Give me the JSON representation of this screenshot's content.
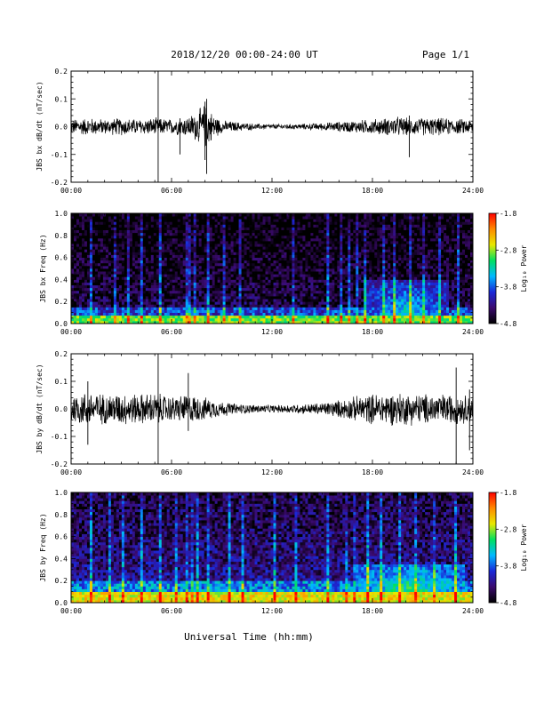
{
  "header": {
    "date_range": "2018/12/20  00:00-24:00 UT",
    "page": "Page 1/1"
  },
  "xaxis": {
    "label": "Universal Time (hh:mm)",
    "tick_labels": [
      "00:00",
      "06:00",
      "12:00",
      "18:00",
      "24:00"
    ],
    "range_hours": [
      0,
      24
    ]
  },
  "colorbar": {
    "label": "Log₁₀ Power",
    "tick_labels": [
      "-1.8",
      "-2.8",
      "-3.8",
      "-4.8"
    ],
    "range": [
      -4.8,
      -1.8
    ],
    "colors": [
      "#000000",
      "#3b0a6e",
      "#1a28d8",
      "#00b8ff",
      "#00e060",
      "#e8e800",
      "#ff8a00",
      "#ff0000"
    ]
  },
  "chart_data": [
    {
      "type": "line",
      "id": "bx-waveform",
      "ylabel": "JBS bx dB/dt (nT/sec)",
      "ylim": [
        -0.2,
        0.2
      ],
      "yticks": [
        "-0.2",
        "-0.1",
        "0.0",
        "0.1",
        "0.2"
      ],
      "series": [
        {
          "x_hours": [
            0,
            1,
            2,
            3,
            4,
            5,
            6,
            7,
            7.5,
            8,
            8.5,
            9,
            10,
            11,
            12,
            13,
            14,
            15,
            16,
            17,
            18,
            19,
            19.5,
            20,
            21,
            22,
            23,
            24
          ],
          "amplitude": [
            0.03,
            0.035,
            0.03,
            0.035,
            0.03,
            0.035,
            0.03,
            0.04,
            0.06,
            0.09,
            0.05,
            0.025,
            0.018,
            0.012,
            0.01,
            0.01,
            0.012,
            0.015,
            0.02,
            0.025,
            0.03,
            0.035,
            0.04,
            0.035,
            0.035,
            0.035,
            0.03,
            0.03
          ]
        }
      ],
      "spikes": [
        {
          "x_hours": 5.2,
          "y": [
            -0.2,
            0.2
          ]
        },
        {
          "x_hours": 6.5,
          "y": [
            -0.1,
            0.03
          ]
        },
        {
          "x_hours": 8.1,
          "y": [
            -0.17,
            0.1
          ]
        },
        {
          "x_hours": 8.0,
          "y": [
            -0.12,
            0.09
          ]
        },
        {
          "x_hours": 20.2,
          "y": [
            -0.11,
            0.04
          ]
        }
      ]
    },
    {
      "type": "heatmap",
      "id": "bx-spectrogram",
      "ylabel": "JBS bx Freq (Hz)",
      "ylim": [
        0.0,
        1.0
      ],
      "yticks": [
        "0.0",
        "0.2",
        "0.4",
        "0.6",
        "0.8",
        "1.0"
      ],
      "zlim": [
        -4.8,
        -1.8
      ],
      "features": {
        "background_log_power": -4.5,
        "low_freq_band": {
          "freq_max_hz": 0.07,
          "log_power": -2.9
        },
        "enhancement": {
          "x_hours": [
            17.5,
            22.5
          ],
          "freq_max_hz": 0.4,
          "peak_log_power": -3.0
        },
        "vertical_streaks_hours": [
          1.2,
          2.5,
          3.3,
          4.2,
          5.3,
          6.8,
          7.1,
          7.4,
          8.1,
          9.2,
          10.1,
          13.3,
          15.3,
          16.1,
          16.7,
          17.1,
          17.6,
          18.7,
          19.4,
          20.3,
          21.1,
          22.0,
          23.2
        ]
      }
    },
    {
      "type": "line",
      "id": "by-waveform",
      "ylabel": "JBS by dB/dt (nT/sec)",
      "ylim": [
        -0.2,
        0.2
      ],
      "yticks": [
        "-0.2",
        "-0.1",
        "0.0",
        "0.1",
        "0.2"
      ],
      "series": [
        {
          "x_hours": [
            0,
            1,
            2,
            3,
            4,
            5,
            6,
            7,
            8,
            9,
            10,
            11,
            12,
            13,
            14,
            15,
            16,
            17,
            18,
            19,
            20,
            21,
            22,
            23,
            24
          ],
          "amplitude": [
            0.06,
            0.07,
            0.06,
            0.065,
            0.06,
            0.065,
            0.05,
            0.06,
            0.045,
            0.03,
            0.02,
            0.017,
            0.015,
            0.017,
            0.02,
            0.025,
            0.035,
            0.05,
            0.06,
            0.065,
            0.065,
            0.06,
            0.06,
            0.06,
            0.055
          ]
        }
      ],
      "spikes": [
        {
          "x_hours": 5.2,
          "y": [
            -0.2,
            0.2
          ]
        },
        {
          "x_hours": 23.0,
          "y": [
            -0.2,
            0.15
          ]
        },
        {
          "x_hours": 7.0,
          "y": [
            -0.08,
            0.13
          ]
        },
        {
          "x_hours": 1.0,
          "y": [
            -0.13,
            0.1
          ]
        },
        {
          "x_hours": 23.8,
          "y": [
            -0.15,
            0.07
          ]
        }
      ]
    },
    {
      "type": "heatmap",
      "id": "by-spectrogram",
      "ylabel": "JBS by Freq (Hz)",
      "ylim": [
        0.0,
        1.0
      ],
      "yticks": [
        "0.0",
        "0.2",
        "0.4",
        "0.6",
        "0.8",
        "1.0"
      ],
      "zlim": [
        -4.8,
        -1.8
      ],
      "features": {
        "background_log_power": -4.2,
        "low_freq_band": {
          "freq_max_hz": 0.1,
          "log_power": -2.6
        },
        "enhancement": {
          "x_hours": [
            17.0,
            23.5
          ],
          "freq_max_hz": 0.35,
          "peak_log_power": -2.7
        },
        "vertical_streaks_hours": [
          1.2,
          2.2,
          3.0,
          4.1,
          5.3,
          6.2,
          6.8,
          7.2,
          7.5,
          8.2,
          9.5,
          10.2,
          12.2,
          13.4,
          15.4,
          16.5,
          17.0,
          17.8,
          18.6,
          19.7,
          20.6,
          21.8,
          23.0
        ]
      }
    }
  ]
}
